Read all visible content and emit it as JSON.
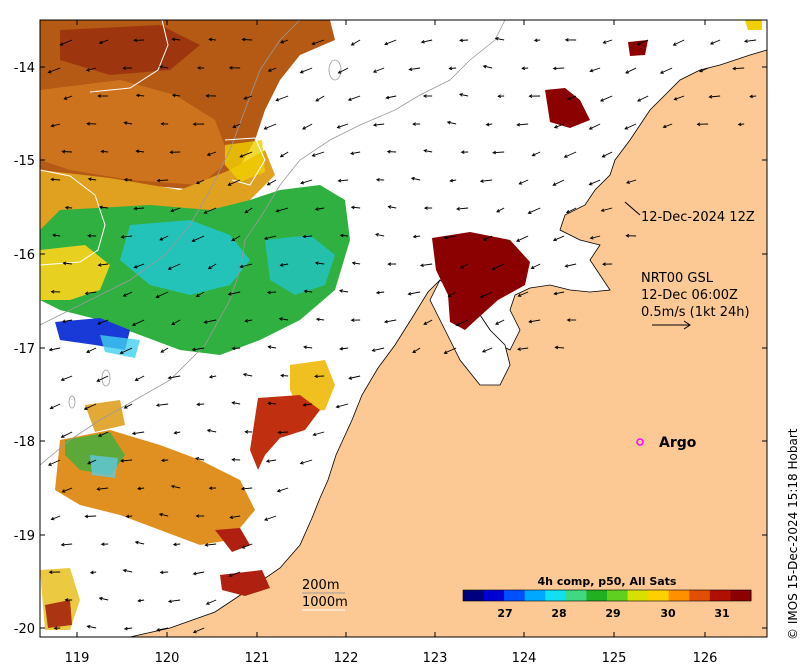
{
  "map": {
    "lon_ticks": [
      "119",
      "120",
      "121",
      "122",
      "123",
      "124",
      "125",
      "126"
    ],
    "lat_ticks": [
      "-14",
      "-15",
      "-16",
      "-17",
      "-18",
      "-19",
      "-20"
    ],
    "land_color": "#fcc994",
    "ocean_color": "#ffffff"
  },
  "annotations": {
    "timestamp": "12-Dec-2024 12Z",
    "current_source": "NRT00 GSL",
    "current_time": "12-Dec 06:00Z",
    "vector_scale": "0.5m/s (1kt 24h)",
    "argo_label": "Argo",
    "argo_color": "#ff00ff",
    "contour_200": "200m",
    "contour_1000": "1000m"
  },
  "colorbar": {
    "title": "4h comp, p50, All Sats",
    "ticks": [
      "27",
      "28",
      "29",
      "30",
      "31"
    ],
    "colors": [
      "#00007f",
      "#0000d0",
      "#0050ff",
      "#00a8ff",
      "#10e0f0",
      "#40d880",
      "#20b020",
      "#60d020",
      "#d8e000",
      "#ffd000",
      "#ff9000",
      "#e05000",
      "#b01000",
      "#8b0000"
    ]
  },
  "credit": "© IMOS 15-Dec-2024 15:18 Hobart"
}
